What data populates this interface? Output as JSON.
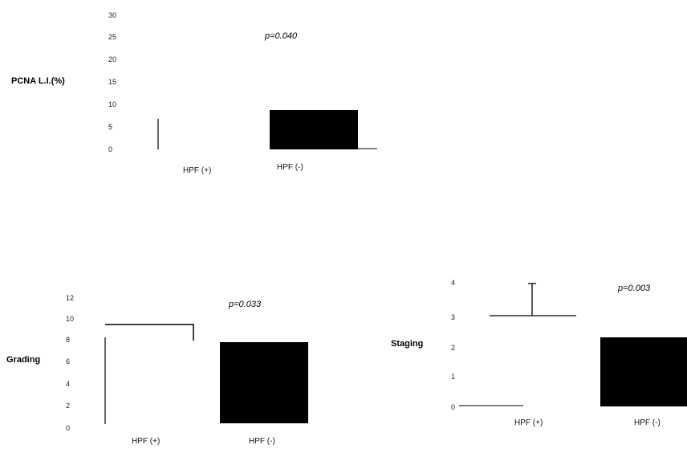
{
  "chart_data": [
    {
      "type": "bar",
      "ylabel": "PCNA L.I.(%)",
      "annotation": "p=0.040",
      "categories": [
        "HPF (+)",
        "HPF (-)"
      ],
      "values": [
        0,
        9
      ],
      "error_bars": [
        7.2,
        0
      ],
      "yticks": [
        "30",
        "25",
        "20",
        "15",
        "10",
        "5",
        "0"
      ],
      "ylim": [
        0,
        30
      ]
    },
    {
      "type": "bar",
      "ylabel": "Grading",
      "annotation": "p=0.033",
      "categories": [
        "HPF (+)",
        "HPF (-)"
      ],
      "values": [
        9.5,
        7.5
      ],
      "error_bars": [
        0,
        0
      ],
      "yticks": [
        "12",
        "10",
        "8",
        "6",
        "4",
        "2",
        "0"
      ],
      "ylim": [
        0,
        12
      ]
    },
    {
      "type": "bar",
      "ylabel": "Staging",
      "annotation": "p=0.003",
      "categories": [
        "HPF (+)",
        "HPF (-)"
      ],
      "values": [
        0,
        2.2
      ],
      "error_bars": [
        3.1,
        0
      ],
      "yticks": [
        "4",
        "3",
        "2",
        "1",
        "0"
      ],
      "ylim": [
        0,
        4
      ]
    }
  ]
}
